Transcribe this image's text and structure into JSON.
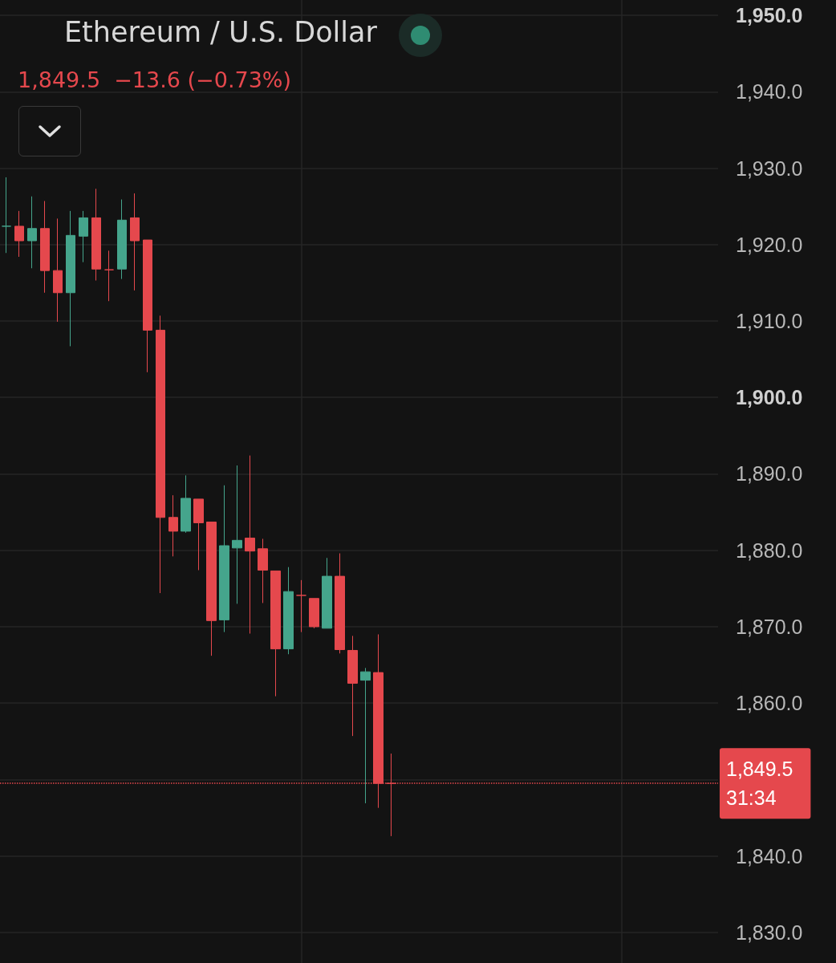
{
  "chart_data": {
    "type": "candlestick",
    "title": "Ethereum / U.S. Dollar",
    "subtitle": "1,849.5  −13.6 (−0.73%)",
    "categories": [
      null,
      null,
      null,
      null,
      null,
      null,
      null,
      null,
      null,
      null,
      null,
      null,
      null,
      null,
      null,
      null,
      null,
      null,
      null,
      null,
      null,
      null,
      null,
      null,
      null,
      null,
      null,
      null,
      null,
      null,
      null,
      null,
      null,
      null,
      null,
      null,
      null,
      null,
      null,
      null,
      null,
      null,
      null,
      null,
      null,
      null,
      null,
      null,
      null,
      null,
      null,
      null,
      null,
      null,
      null,
      null
    ],
    "ohlc": [
      [
        1922.4,
        1928.8,
        1918.9,
        1922.4
      ],
      [
        1922.4,
        1924.4,
        1918.4,
        1920.5
      ],
      [
        1920.5,
        1926.3,
        1916.9,
        1922.1
      ],
      [
        1922.1,
        1925.7,
        1913.7,
        1916.6
      ],
      [
        1916.6,
        1923.4,
        1909.9,
        1913.7
      ],
      [
        1913.7,
        1924.4,
        1906.7,
        1921.2
      ],
      [
        1921.1,
        1924.4,
        1917.7,
        1923.5
      ],
      [
        1923.5,
        1927.3,
        1915.3,
        1916.8
      ],
      [
        1916.7,
        1919.2,
        1912.6,
        1916.7
      ],
      [
        1916.8,
        1925.9,
        1915.5,
        1923.2
      ],
      [
        1923.5,
        1926.7,
        1914.0,
        1920.5
      ],
      [
        1920.6,
        1920.6,
        1903.3,
        1908.8
      ],
      [
        1908.8,
        1910.7,
        1874.4,
        1884.3
      ],
      [
        1884.3,
        1887.2,
        1879.2,
        1882.5
      ],
      [
        1882.5,
        1889.8,
        1882.3,
        1886.8
      ],
      [
        1886.7,
        1886.7,
        1877.4,
        1883.6
      ],
      [
        1883.7,
        1883.7,
        1866.2,
        1870.8
      ],
      [
        1870.9,
        1888.5,
        1869.3,
        1880.6
      ],
      [
        1880.3,
        1891.1,
        1873.0,
        1881.3
      ],
      [
        1881.6,
        1892.4,
        1869.1,
        1879.9
      ],
      [
        1880.2,
        1881.5,
        1873.1,
        1877.4
      ],
      [
        1877.3,
        1877.3,
        1860.9,
        1867.1
      ],
      [
        1867.1,
        1877.8,
        1866.4,
        1874.6
      ],
      [
        1874.1,
        1876.1,
        1869.3,
        1874.1
      ],
      [
        1873.7,
        1873.7,
        1869.8,
        1870.0
      ],
      [
        1869.8,
        1879.0,
        1869.8,
        1876.6
      ],
      [
        1876.6,
        1879.6,
        1866.5,
        1867.0
      ],
      [
        1866.9,
        1868.8,
        1855.7,
        1862.6
      ],
      [
        1863.0,
        1864.6,
        1846.9,
        1864.1
      ],
      [
        1864.0,
        1869.0,
        1846.3,
        1849.5
      ],
      [
        1849.5,
        1853.4,
        1842.6,
        1849.5
      ],
      null,
      null,
      null,
      null,
      null,
      null,
      null,
      null,
      null,
      null,
      null,
      null,
      null,
      null,
      null,
      null,
      null,
      null,
      null,
      null,
      null,
      null,
      null,
      null,
      null
    ],
    "colors": [
      "#45a58c",
      "#e5484d",
      "#45a58c",
      "#e5484d",
      "#e5484d",
      "#45a58c",
      "#45a58c",
      "#e5484d",
      "#e5484d",
      "#45a58c",
      "#e5484d",
      "#e5484d",
      "#e5484d",
      "#e5484d",
      "#45a58c",
      "#e5484d",
      "#e5484d",
      "#45a58c",
      "#45a58c",
      "#e5484d",
      "#e5484d",
      "#e5484d",
      "#45a58c",
      "#e5484d",
      "#e5484d",
      "#45a58c",
      "#e5484d",
      "#e5484d",
      "#45a58c",
      "#e5484d",
      "#e5484d",
      null,
      null,
      null,
      null,
      null,
      null,
      null,
      null,
      null,
      null,
      null,
      null,
      null,
      null,
      null,
      null,
      null,
      null,
      null,
      null,
      null,
      null,
      null,
      null,
      null
    ],
    "ylim": [
      1826,
      1952
    ],
    "yticks": [
      {
        "value": 1830,
        "label": "1,830.0"
      },
      {
        "value": 1840,
        "label": "1,840.0"
      },
      {
        "value": 1850,
        "label": null
      },
      {
        "value": 1860,
        "label": "1,860.0"
      },
      {
        "value": 1870,
        "label": "1,870.0"
      },
      {
        "value": 1880,
        "label": "1,880.0"
      },
      {
        "value": 1890,
        "label": "1,890.0"
      },
      {
        "value": 1900,
        "label": "1,900.0"
      },
      {
        "value": 1910,
        "label": "1,910.0"
      },
      {
        "value": 1920,
        "label": "1,920.0"
      },
      {
        "value": 1930,
        "label": "1,930.0"
      },
      {
        "value": 1940,
        "label": "1,940.0"
      },
      {
        "value": 1950,
        "label": "1,950.0"
      }
    ],
    "ref_lines": [
      {
        "axis": "y",
        "value": 1849.5,
        "label": "1,849.5\n31:34",
        "color": "#e5484d",
        "line_style": "dotted"
      }
    ],
    "grid": true
  }
}
